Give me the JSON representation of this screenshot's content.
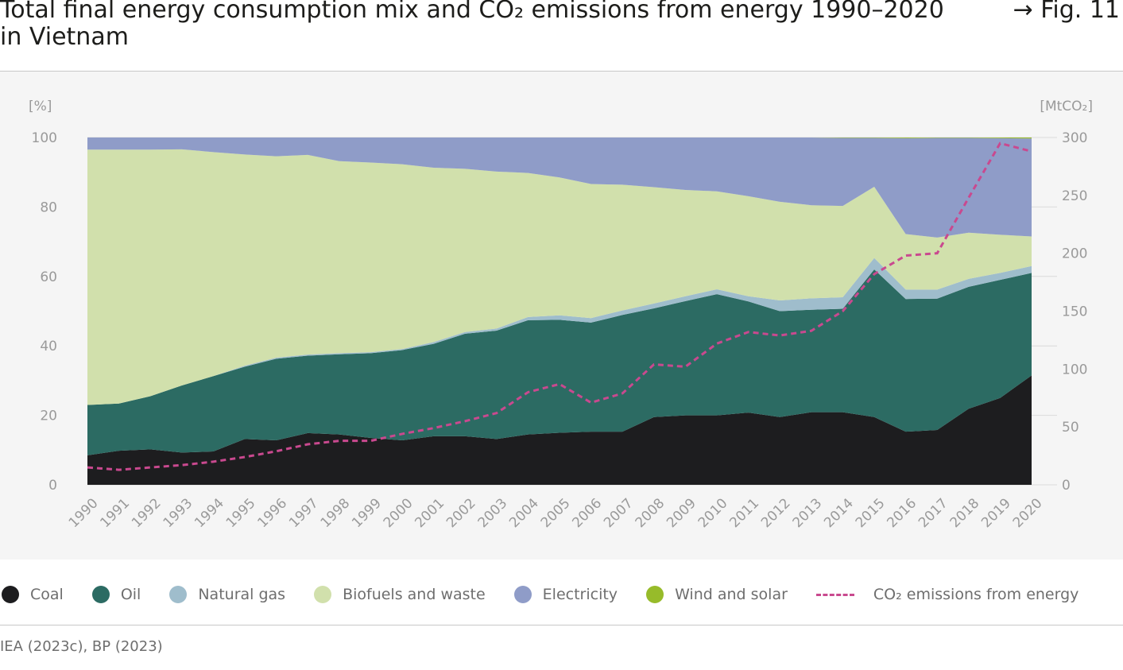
{
  "header": {
    "title": "Total final energy consumption mix and CO₂ emissions from energy 1990–2020 in Vietnam",
    "fig_ref": "→ Fig. 11"
  },
  "source": "IEA (2023c), BP (2023)",
  "chart_data": {
    "type": "area",
    "stacked": true,
    "left_axis": {
      "unit": "[%]",
      "range": [
        0,
        100
      ],
      "ticks": [
        0,
        20,
        40,
        60,
        80,
        100
      ]
    },
    "right_axis": {
      "unit": "[MtCO₂]",
      "range": [
        0,
        300
      ],
      "ticks": [
        0,
        50,
        100,
        150,
        200,
        250,
        300
      ]
    },
    "grid": "horizontal",
    "legend_position": "bottom",
    "x": [
      "1990",
      "1991",
      "1992",
      "1993",
      "1994",
      "1995",
      "1996",
      "1997",
      "1998",
      "1999",
      "2000",
      "2001",
      "2002",
      "2003",
      "2004",
      "2005",
      "2006",
      "2007",
      "2008",
      "2009",
      "2010",
      "2011",
      "2012",
      "2013",
      "2014",
      "2015",
      "2016",
      "2017",
      "2018",
      "2019",
      "2020"
    ],
    "series": [
      {
        "name": "Coal",
        "color": "#1d1d1f",
        "axis": "left",
        "values": [
          8.5,
          9.8,
          10.2,
          9.3,
          9.6,
          13.2,
          12.8,
          14.9,
          14.5,
          13.5,
          12.8,
          14.0,
          14.0,
          13.2,
          14.5,
          15.0,
          15.3,
          15.3,
          19.5,
          20.0,
          20.0,
          20.8,
          19.5,
          20.9,
          20.9,
          19.5,
          15.3,
          15.8,
          21.9,
          25.0,
          31.5
        ]
      },
      {
        "name": "Oil",
        "color": "#2c6b63",
        "axis": "left",
        "values": [
          14.5,
          13.6,
          15.3,
          19.3,
          21.7,
          20.8,
          23.5,
          22.3,
          23.1,
          24.4,
          26.0,
          26.6,
          29.5,
          31.2,
          32.9,
          32.5,
          31.4,
          33.6,
          31.3,
          32.9,
          34.9,
          32.0,
          30.5,
          29.5,
          29.8,
          42.5,
          38.2,
          37.8,
          35.1,
          34.0,
          29.5
        ]
      },
      {
        "name": "Natural gas",
        "color": "#9fbdcc",
        "axis": "left",
        "values": [
          0,
          0,
          0,
          0,
          0,
          0.3,
          0.3,
          0.3,
          0.3,
          0.3,
          0.3,
          0.5,
          0.5,
          0.6,
          0.9,
          1.3,
          1.3,
          1.3,
          1.4,
          1.4,
          1.4,
          1.5,
          3.1,
          3.3,
          3.3,
          3.3,
          2.7,
          2.6,
          2.3,
          2.0,
          2.0
        ]
      },
      {
        "name": "Biofuels and waste",
        "color": "#d1e0ac",
        "axis": "left",
        "values": [
          73.5,
          73.1,
          71.0,
          68.0,
          64.5,
          60.8,
          58.0,
          57.5,
          55.3,
          54.6,
          53.2,
          50.2,
          47.0,
          45.2,
          41.5,
          39.7,
          38.6,
          36.2,
          33.5,
          30.6,
          28.2,
          28.8,
          28.4,
          26.8,
          26.3,
          20.5,
          16.0,
          15.0,
          13.3,
          11.0,
          8.5
        ]
      },
      {
        "name": "Electricity",
        "color": "#8f9cc8",
        "axis": "left",
        "values": [
          3.5,
          3.5,
          3.5,
          3.4,
          4.2,
          4.9,
          5.4,
          5.0,
          6.8,
          7.2,
          7.7,
          8.7,
          9.0,
          9.8,
          10.2,
          11.5,
          13.4,
          13.6,
          14.3,
          15.1,
          15.5,
          16.9,
          18.5,
          19.5,
          19.6,
          14.1,
          27.6,
          28.7,
          27.3,
          27.8,
          28.2
        ]
      },
      {
        "name": "Wind and solar",
        "color": "#97bb2a",
        "axis": "left",
        "values": [
          0,
          0,
          0,
          0,
          0,
          0,
          0,
          0,
          0,
          0,
          0,
          0,
          0,
          0,
          0,
          0,
          0,
          0,
          0,
          0,
          0,
          0,
          0,
          0,
          0.1,
          0.2,
          0.2,
          0.1,
          0.1,
          0.2,
          0.3
        ]
      },
      {
        "name": "CO₂ emissions from energy",
        "color": "#c9498f",
        "axis": "right",
        "style": "dashed",
        "values": [
          15,
          13,
          15,
          17,
          20,
          24,
          29,
          35,
          38,
          38,
          44,
          49,
          55,
          62,
          80,
          87,
          71,
          79,
          104,
          102,
          122,
          132,
          129,
          133,
          150,
          182,
          198,
          200,
          248,
          295,
          288
        ]
      }
    ]
  }
}
